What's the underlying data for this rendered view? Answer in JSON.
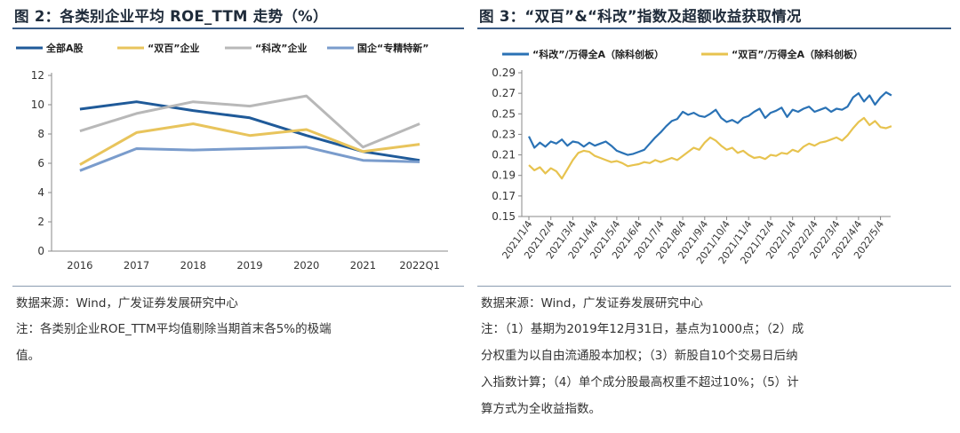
{
  "left": {
    "title": "图 2：各类别企业平均 ROE_TTM 走势（%）",
    "source": "数据来源：Wind，广发证券发展研究中心",
    "note_lines": [
      "注：各类别企业ROE_TTM平均值剔除当期首末各5%的极端",
      "值。"
    ]
  },
  "right": {
    "title": "图 3：“双百”&“科改”指数及超额收益获取情况",
    "source": "数据来源：Wind，广发证券发展研究中心",
    "note_lines": [
      "注：（1）基期为2019年12月31日，基点为1000点；（2）成",
      "分权重为以自由流通股本加权；（3）新股自10个交易日后纳",
      "入指数计算；（4）单个成分股最高权重不超过10%；（5）计",
      "算方式为全收益指数。"
    ]
  },
  "chart_data": [
    {
      "type": "line",
      "title": "各类别企业平均 ROE_TTM 走势（%）",
      "categories": [
        "2016",
        "2017",
        "2018",
        "2019",
        "2020",
        "2021",
        "2022Q1"
      ],
      "ylim": [
        0,
        12
      ],
      "yticks": [
        0,
        2,
        4,
        6,
        8,
        10,
        12
      ],
      "grid": false,
      "legend_position": "top",
      "series": [
        {
          "name": "全部A股",
          "color": "#1f5a99",
          "values": [
            9.7,
            10.2,
            9.6,
            9.1,
            7.9,
            6.8,
            6.2
          ]
        },
        {
          "name": "“双百”企业",
          "color": "#e8c45c",
          "values": [
            5.9,
            8.1,
            8.7,
            7.9,
            8.3,
            6.8,
            7.3
          ]
        },
        {
          "name": "“科改”企业",
          "color": "#b8b8b8",
          "values": [
            8.2,
            9.4,
            10.2,
            9.9,
            10.6,
            7.1,
            8.7
          ]
        },
        {
          "name": "国企“专精特新”",
          "color": "#7a9ccc",
          "values": [
            5.5,
            7.0,
            6.9,
            7.0,
            7.1,
            6.2,
            6.1
          ]
        }
      ]
    },
    {
      "type": "line",
      "title": "“双百”&“科改”指数及超额收益获取情况",
      "x_labels": [
        "2021/1/4",
        "2021/2/4",
        "2021/3/4",
        "2021/4/4",
        "2021/5/4",
        "2021/6/4",
        "2021/7/4",
        "2021/8/4",
        "2021/9/4",
        "2021/10/4",
        "2021/11/4",
        "2021/12/4",
        "2022/1/4",
        "2022/2/4",
        "2022/3/4",
        "2022/4/4",
        "2022/5/4"
      ],
      "ylim": [
        0.15,
        0.29
      ],
      "yticks": [
        "0.15",
        "0.17",
        "0.19",
        "0.21",
        "0.23",
        "0.25",
        "0.27",
        "0.29"
      ],
      "grid": false,
      "legend_position": "top",
      "series": [
        {
          "name": "“科改”/万得全A（除科创板）",
          "color": "#2a72b5",
          "x": [
            0,
            0.25,
            0.5,
            0.75,
            1,
            1.25,
            1.5,
            1.75,
            2,
            2.25,
            2.5,
            2.75,
            3,
            3.25,
            3.5,
            3.75,
            4,
            4.25,
            4.5,
            4.75,
            5,
            5.25,
            5.5,
            5.75,
            6,
            6.25,
            6.5,
            6.75,
            7,
            7.25,
            7.5,
            7.75,
            8,
            8.25,
            8.5,
            8.75,
            9,
            9.25,
            9.5,
            9.75,
            10,
            10.25,
            10.5,
            10.75,
            11,
            11.25,
            11.5,
            11.75,
            12,
            12.25,
            12.5,
            12.75,
            13,
            13.25,
            13.5,
            13.75,
            14,
            14.25,
            14.5,
            14.75,
            15,
            15.25,
            15.5,
            15.75,
            16,
            16.25,
            16.5
          ],
          "values": [
            0.228,
            0.217,
            0.222,
            0.218,
            0.223,
            0.221,
            0.225,
            0.219,
            0.223,
            0.222,
            0.218,
            0.222,
            0.219,
            0.221,
            0.223,
            0.219,
            0.214,
            0.212,
            0.21,
            0.211,
            0.213,
            0.215,
            0.221,
            0.227,
            0.232,
            0.238,
            0.243,
            0.245,
            0.252,
            0.249,
            0.251,
            0.248,
            0.247,
            0.25,
            0.254,
            0.246,
            0.242,
            0.244,
            0.241,
            0.246,
            0.248,
            0.252,
            0.255,
            0.246,
            0.251,
            0.253,
            0.256,
            0.247,
            0.254,
            0.252,
            0.255,
            0.257,
            0.252,
            0.254,
            0.256,
            0.252,
            0.255,
            0.254,
            0.257,
            0.266,
            0.27,
            0.262,
            0.268,
            0.259,
            0.266,
            0.271,
            0.268
          ]
        },
        {
          "name": "“双百”/万得全A（除科创板）",
          "color": "#e7c34f",
          "x": [
            0,
            0.25,
            0.5,
            0.75,
            1,
            1.25,
            1.5,
            1.75,
            2,
            2.25,
            2.5,
            2.75,
            3,
            3.25,
            3.5,
            3.75,
            4,
            4.25,
            4.5,
            4.75,
            5,
            5.25,
            5.5,
            5.75,
            6,
            6.25,
            6.5,
            6.75,
            7,
            7.25,
            7.5,
            7.75,
            8,
            8.25,
            8.5,
            8.75,
            9,
            9.25,
            9.5,
            9.75,
            10,
            10.25,
            10.5,
            10.75,
            11,
            11.25,
            11.5,
            11.75,
            12,
            12.25,
            12.5,
            12.75,
            13,
            13.25,
            13.5,
            13.75,
            14,
            14.25,
            14.5,
            14.75,
            15,
            15.25,
            15.5,
            15.75,
            16,
            16.25,
            16.5
          ],
          "values": [
            0.2,
            0.195,
            0.198,
            0.192,
            0.197,
            0.194,
            0.187,
            0.196,
            0.205,
            0.212,
            0.214,
            0.213,
            0.209,
            0.207,
            0.205,
            0.203,
            0.204,
            0.202,
            0.199,
            0.2,
            0.201,
            0.203,
            0.202,
            0.205,
            0.203,
            0.205,
            0.207,
            0.205,
            0.209,
            0.213,
            0.217,
            0.215,
            0.222,
            0.227,
            0.224,
            0.219,
            0.215,
            0.217,
            0.212,
            0.214,
            0.21,
            0.207,
            0.208,
            0.206,
            0.21,
            0.209,
            0.212,
            0.211,
            0.215,
            0.213,
            0.218,
            0.221,
            0.219,
            0.222,
            0.223,
            0.225,
            0.227,
            0.224,
            0.229,
            0.236,
            0.242,
            0.246,
            0.239,
            0.243,
            0.237,
            0.236,
            0.238
          ]
        }
      ]
    }
  ]
}
